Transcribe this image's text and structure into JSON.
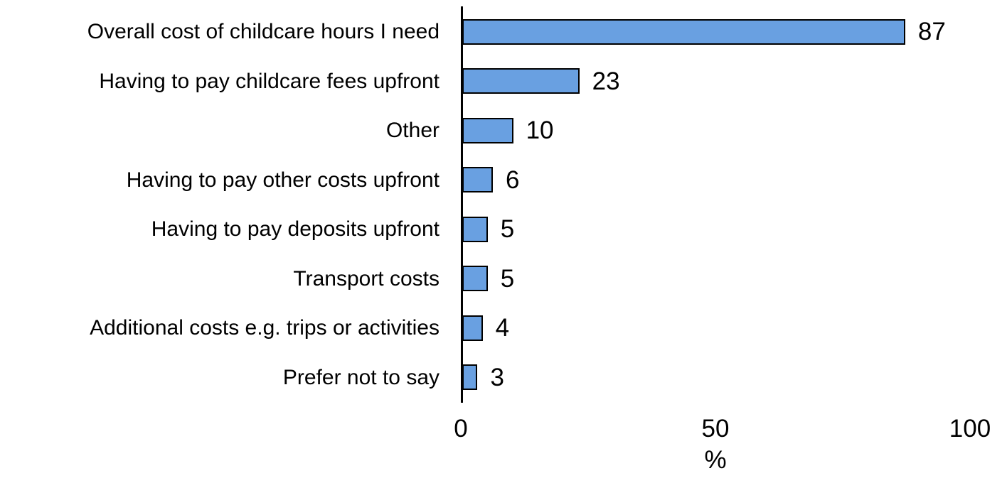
{
  "chart_data": {
    "type": "bar",
    "orientation": "horizontal",
    "title": "",
    "categories": [
      "Overall cost of childcare hours I need",
      "Having to pay childcare fees upfront",
      "Other",
      "Having to pay other costs upfront",
      "Having to pay deposits upfront",
      "Transport costs",
      "Additional costs e.g. trips or activities",
      "Prefer not to say"
    ],
    "values": [
      87,
      23,
      10,
      6,
      5,
      5,
      4,
      3
    ],
    "value_labels": [
      "87",
      "23",
      "10",
      "6",
      "5",
      "5",
      "4",
      "3"
    ],
    "xlabel": "%",
    "xlim": [
      0,
      100
    ],
    "xticks": [
      0,
      50,
      100
    ],
    "grid": false,
    "legend": false,
    "colors": {
      "bar_fill": "#69A0E1",
      "bar_border": "#000000",
      "axis": "#000000",
      "text": "#000000",
      "background": "#FFFFFF"
    }
  }
}
